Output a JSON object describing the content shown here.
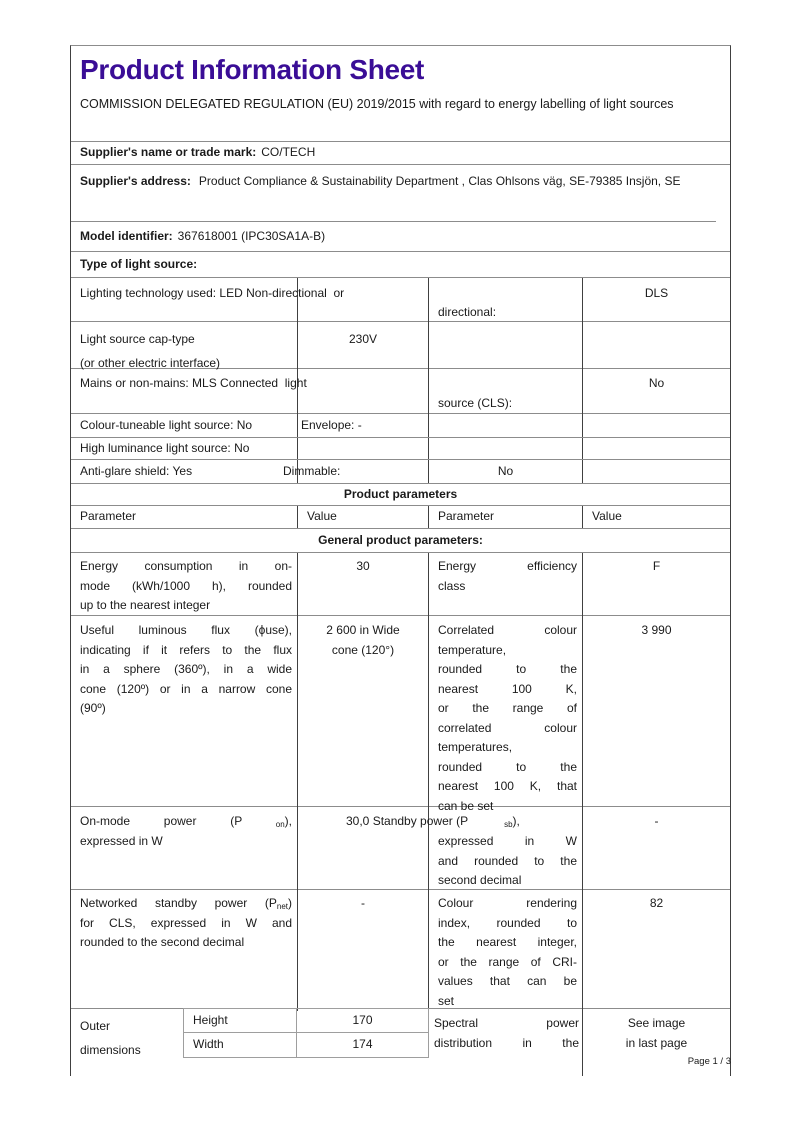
{
  "colors": {
    "title_accent": "#3A0D96"
  },
  "header": {
    "title": "Product Information Sheet",
    "subtitle": "COMMISSION DELEGATED REGULATION (EU) 2019/2015 with regard to energy labelling of light sources"
  },
  "supplier": {
    "name_label": "Supplier's name or trade mark:",
    "name_value": "CO/TECH",
    "address_label": "Supplier's address:",
    "address_value": "Product Compliance & Sustainability Department , Clas Ohlsons väg, SE-79385 Insjön, SE",
    "model_label": "Model identifier:",
    "model_value": "367618001 (IPC30SA1A-B)"
  },
  "type_section": {
    "heading": "Type of light source:",
    "lighting_tech_text": "Lighting technology used: LED Non-directional  or",
    "lighting_tech_cont": "directional:",
    "lighting_tech_value": "DLS",
    "cap_type_line1": "Light source cap-type",
    "cap_type_line2": "(or other electric interface)",
    "cap_type_value": "230V",
    "mains_text": "Mains or non-mains: MLS Connected  light",
    "mains_cont": "source (CLS):",
    "mains_value": "No",
    "colour_tuneable_text": "Colour-tuneable light source: No",
    "envelope_text": "Envelope: -",
    "high_luminance_text": "High luminance light source: No",
    "anti_glare_text": "Anti-glare shield: Yes",
    "dimmable_label": "Dimmable:",
    "dimmable_value": "No"
  },
  "parameters": {
    "section_title": "Product parameters",
    "col_headers": [
      "Parameter",
      "Value",
      "Parameter",
      "Value"
    ],
    "general_heading": "General product parameters:",
    "energy": {
      "p1": [
        "Energy consumption in on-",
        "mode (kWh/1000 h), rounded",
        "up to the nearest integer"
      ],
      "v1": "30",
      "p2": [
        "Energy efficiency",
        "class"
      ],
      "v2": "F"
    },
    "flux": {
      "p1": [
        "Useful luminous flux (ϕuse),",
        "indicating if it refers to the flux",
        "in a sphere (360º), in a wide",
        "cone (120º) or in a narrow cone",
        "(90º)"
      ],
      "v1": [
        "2 600 in Wide",
        "cone (120°)"
      ],
      "p2": [
        "Correlated colour",
        "temperature,",
        "rounded to the",
        "nearest 100 K,",
        "or the range of",
        "correlated colour",
        "temperatures,",
        "rounded to the",
        "nearest 100 K, that",
        "can be set"
      ],
      "v2": "3 990"
    },
    "power": {
      "p1": [
        "On-mode power (P ~on~),",
        "expressed in W"
      ],
      "v1_overflow": "30,0 Standby power (P   ~sb~),",
      "p2": [
        "expressed in W",
        "and rounded to the",
        "second decimal"
      ],
      "v2": "-"
    },
    "networked": {
      "p1": [
        "Networked standby power (P~net~)",
        "for CLS, expressed in W and",
        "rounded to the second decimal"
      ],
      "v1": "-",
      "p2": [
        "Colour rendering",
        "index, rounded to",
        "the nearest integer,",
        "or the range of CRI-",
        "values that can be",
        "set"
      ],
      "v2": "82"
    },
    "dimensions": {
      "label_lines": [
        "Outer",
        "dimensions"
      ],
      "rows": [
        {
          "name": "Height",
          "value": "170"
        },
        {
          "name": "Width",
          "value": "174"
        }
      ],
      "p2": [
        "Spectral power",
        "distribution in the"
      ],
      "v2": [
        "See image",
        "in last page"
      ]
    }
  },
  "footer": {
    "page_indicator": "Page 1 / 3"
  }
}
